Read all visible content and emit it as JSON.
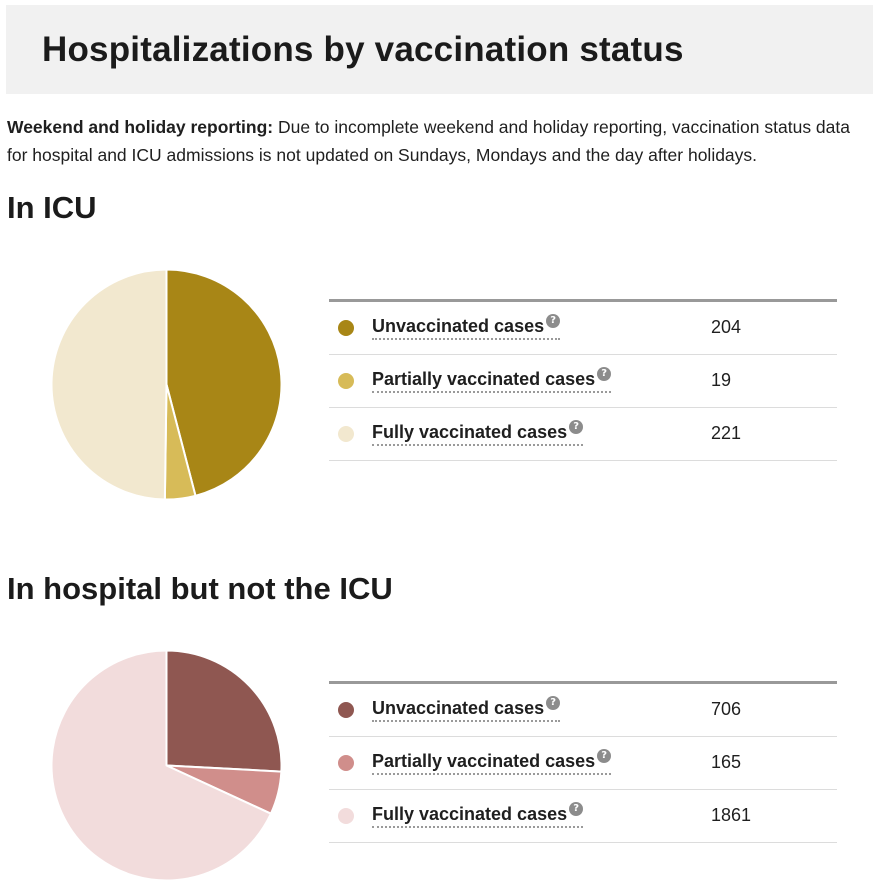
{
  "page_title": "Hospitalizations by vaccination status",
  "note": {
    "bold": "Weekend and holiday reporting:",
    "text": " Due to incomplete weekend and holiday reporting, vaccination status data for hospital and ICU admissions is not updated on Sundays, Mondays and the day after holidays."
  },
  "help_glyph": "?",
  "chart_data": [
    {
      "type": "pie",
      "title": "In ICU",
      "categories": [
        "Unvaccinated cases",
        "Partially vaccinated cases",
        "Fully vaccinated cases"
      ],
      "values": [
        204,
        19,
        221
      ],
      "colors": [
        "#a88616",
        "#d7bb58",
        "#f2e8cf"
      ],
      "legend": "right"
    },
    {
      "type": "pie",
      "title": "In hospital but not the ICU",
      "categories": [
        "Unvaccinated cases",
        "Partially vaccinated cases",
        "Fully vaccinated cases"
      ],
      "values": [
        706,
        165,
        1861
      ],
      "colors": [
        "#8f5751",
        "#d08e8b",
        "#f2dcdc"
      ],
      "legend": "right"
    }
  ]
}
